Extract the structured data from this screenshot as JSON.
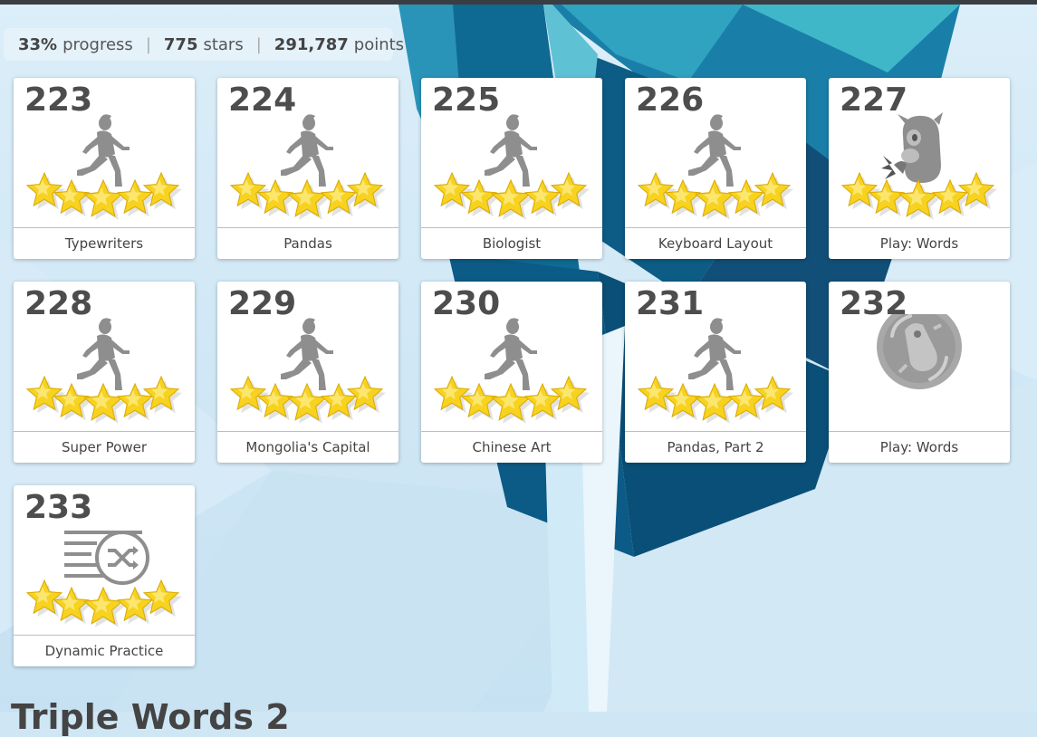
{
  "stats": {
    "progress_value": "33%",
    "progress_label": "progress",
    "stars_value": "775",
    "stars_label": "stars",
    "points_value": "291,787",
    "points_label": "points",
    "separator": "|"
  },
  "lessons": [
    {
      "number": "223",
      "title": "Typewriters",
      "icon": "runner-icon",
      "stars": 5
    },
    {
      "number": "224",
      "title": "Pandas",
      "icon": "runner-icon",
      "stars": 5
    },
    {
      "number": "225",
      "title": "Biologist",
      "icon": "runner-icon",
      "stars": 5
    },
    {
      "number": "226",
      "title": "Keyboard Layout",
      "icon": "runner-icon",
      "stars": 5
    },
    {
      "number": "227",
      "title": "Play: Words",
      "icon": "monster-game-icon",
      "stars": 5
    },
    {
      "number": "228",
      "title": "Super Power",
      "icon": "runner-icon",
      "stars": 5
    },
    {
      "number": "229",
      "title": "Mongolia's Capital",
      "icon": "runner-icon",
      "stars": 5
    },
    {
      "number": "230",
      "title": "Chinese Art",
      "icon": "runner-icon",
      "stars": 5
    },
    {
      "number": "231",
      "title": "Pandas, Part 2",
      "icon": "runner-icon",
      "stars": 5
    },
    {
      "number": "232",
      "title": "Play: Words",
      "icon": "locked-game-badge-icon",
      "stars": 0
    },
    {
      "number": "233",
      "title": "Dynamic Practice",
      "icon": "shuffle-practice-icon",
      "stars": 5
    }
  ],
  "next_section_title": "Triple Words 2",
  "colors": {
    "star_fill": "#f7d21f",
    "icon_gray": "#8e8e8e",
    "crystal_dark": "#0e5f86",
    "crystal_light": "#3fb0c8"
  }
}
